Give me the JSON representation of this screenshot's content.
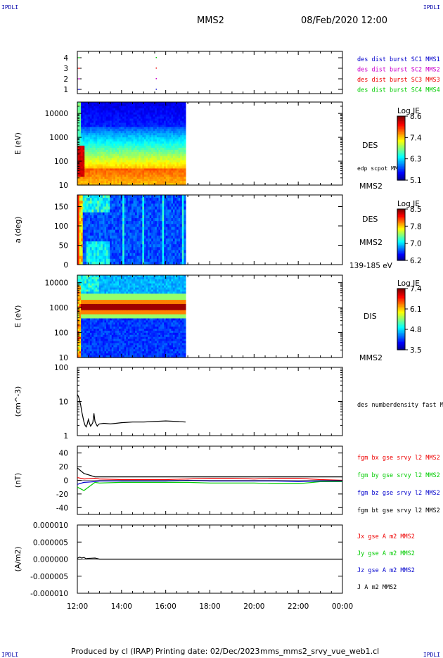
{
  "corners": {
    "top_left": "IPDLI",
    "top_right": "IPDLI",
    "bottom_left": "IPDLI",
    "bottom_right": "IPDLI"
  },
  "header": {
    "spacecraft": "MMS2",
    "date_time": "08/Feb/2020 12:00"
  },
  "footer": {
    "produced_by": "Produced by cl (IRAP)",
    "printing_date": "Printing date: 02/Dec/2023",
    "file": "mms_mms2_srvy_vue_web1.cl"
  },
  "colors": {
    "axis": "#000000",
    "red": "#ee0000",
    "green": "#00cc00",
    "blue": "#0000cc",
    "magenta": "#cc00cc",
    "black": "#000000"
  },
  "chart_data": [
    {
      "id": "burst",
      "type": "scatter",
      "yticks": [
        "1",
        "2",
        "3",
        "4"
      ],
      "ylim": [
        0.6,
        4.6
      ],
      "segments": [
        {
          "y": 1,
          "x": [
            12.03,
            12.12
          ],
          "color_key": "blue"
        },
        {
          "y": 2,
          "x": [
            12.03,
            12.12
          ],
          "color_key": "magenta"
        },
        {
          "y": 3,
          "x": [
            12.03,
            12.12
          ],
          "color_key": "red"
        },
        {
          "y": 4,
          "x": [
            12.03,
            12.12
          ],
          "color_key": "green"
        }
      ],
      "dots": [
        {
          "y": 1,
          "x": 15.55
        },
        {
          "y": 2,
          "x": 15.55
        },
        {
          "y": 3,
          "x": 15.55
        },
        {
          "y": 4,
          "x": 15.55
        }
      ],
      "legend": [
        {
          "text": "des dist burst SC1 MMS1",
          "color_key": "blue"
        },
        {
          "text": "des dist burst SC2 MMS2",
          "color_key": "magenta"
        },
        {
          "text": "des dist burst SC3 MMS3",
          "color_key": "red"
        },
        {
          "text": "des dist burst SC4 MMS4",
          "color_key": "green"
        }
      ]
    },
    {
      "id": "des_energy",
      "type": "heatmap",
      "ylabel": "E (eV)",
      "yscale": "log",
      "ylim": [
        10,
        30000
      ],
      "yticks": [
        "10",
        "100",
        "1000",
        "10000"
      ],
      "data_x_range": [
        12.0,
        16.9
      ],
      "instrument": "DES",
      "right_note": "edp scpot MMS2",
      "sc_label": "MMS2",
      "colorbar": {
        "title": "Log JE",
        "range": [
          5.1,
          8.6
        ],
        "ticks": [
          "8.6",
          "7.4",
          "6.3",
          "5.1"
        ]
      }
    },
    {
      "id": "des_pitch",
      "type": "heatmap",
      "ylabel": "a (deg)",
      "ylim": [
        0,
        180
      ],
      "yticks": [
        "0",
        "50",
        "100",
        "150"
      ],
      "data_x_range": [
        12.0,
        16.9
      ],
      "instrument": "DES",
      "sc_label": "MMS2",
      "energy_note": "139-185 eV",
      "colorbar": {
        "title": "Log JE",
        "range": [
          6.2,
          8.5
        ],
        "ticks": [
          "8.5",
          "7.8",
          "7.0",
          "6.2"
        ]
      }
    },
    {
      "id": "dis_energy",
      "type": "heatmap",
      "ylabel": "E (eV)",
      "yscale": "log",
      "ylim": [
        10,
        20000
      ],
      "yticks": [
        "10",
        "100",
        "1000",
        "10000"
      ],
      "data_x_range": [
        12.0,
        16.9
      ],
      "instrument": "DIS",
      "sc_label": "MMS2",
      "colorbar": {
        "title": "Log JE",
        "range": [
          3.5,
          7.4
        ],
        "ticks": [
          "7.4",
          "6.1",
          "4.8",
          "3.5"
        ]
      }
    },
    {
      "id": "density",
      "type": "line",
      "ylabel": "(cm^-3)",
      "yscale": "log",
      "ylim": [
        1,
        100
      ],
      "yticks": [
        "1",
        "10",
        "100"
      ],
      "legend": [
        {
          "text": "des numberdensity fast M",
          "color_key": "black"
        }
      ],
      "series": [
        {
          "color_key": "black",
          "x": [
            12.0,
            12.05,
            12.1,
            12.15,
            12.2,
            12.25,
            12.3,
            12.35,
            12.4,
            12.45,
            12.5,
            12.55,
            12.6,
            12.65,
            12.7,
            12.75,
            12.8,
            12.85,
            12.9,
            12.95,
            13.0,
            13.2,
            13.5,
            14.0,
            14.5,
            15.0,
            15.5,
            16.0,
            16.5,
            16.9
          ],
          "y": [
            16,
            14,
            11,
            8,
            5,
            3.5,
            2.5,
            2,
            1.8,
            2.2,
            3,
            2.3,
            1.9,
            2.1,
            2.4,
            4.5,
            2.6,
            2.2,
            1.9,
            2.1,
            2.2,
            2.3,
            2.2,
            2.4,
            2.5,
            2.5,
            2.6,
            2.7,
            2.6,
            2.5
          ]
        }
      ]
    },
    {
      "id": "fgm",
      "type": "line",
      "ylabel": "(nT)",
      "ylim": [
        -50,
        50
      ],
      "yticks": [
        "-40",
        "-20",
        "0",
        "20",
        "40"
      ],
      "legend": [
        {
          "text": "fgm bx gse srvy l2 MMS2",
          "color_key": "red"
        },
        {
          "text": "fgm by gse srvy l2 MMS2",
          "color_key": "green"
        },
        {
          "text": "fgm bz gse srvy l2 MMS2",
          "color_key": "blue"
        },
        {
          "text": "fgm bt gse srvy l2 MMS2",
          "color_key": "black"
        }
      ],
      "series": [
        {
          "name": "bx",
          "color_key": "red",
          "x": [
            12.0,
            12.3,
            12.8,
            13.0,
            14,
            15,
            16,
            17,
            18,
            19,
            20,
            21,
            22,
            23,
            24
          ],
          "y": [
            4,
            2,
            3,
            2,
            1,
            1,
            1,
            2,
            3,
            3,
            2,
            3,
            3,
            1,
            0
          ]
        },
        {
          "name": "by",
          "color_key": "green",
          "x": [
            12.0,
            12.3,
            12.8,
            13.0,
            14,
            15,
            16,
            17,
            18,
            19,
            20,
            21,
            22,
            23,
            24
          ],
          "y": [
            -10,
            -15,
            -3,
            -4,
            -3,
            -3,
            -3,
            -3,
            -4,
            -4,
            -4,
            -5,
            -5,
            -2,
            -2
          ]
        },
        {
          "name": "bz",
          "color_key": "blue",
          "x": [
            12.0,
            12.3,
            12.8,
            13.0,
            14,
            15,
            16,
            17,
            18,
            19,
            20,
            21,
            22,
            23,
            24
          ],
          "y": [
            -6,
            -3,
            -2,
            -1,
            -1,
            -1,
            -1,
            0,
            -1,
            -1,
            -1,
            -1,
            -2,
            -1,
            -1
          ]
        },
        {
          "name": "bt",
          "color_key": "black",
          "x": [
            12.0,
            12.3,
            12.8,
            13.0,
            14,
            15,
            16,
            17,
            18,
            19,
            20,
            21,
            22,
            23,
            24
          ],
          "y": [
            18,
            10,
            5,
            5,
            5,
            5,
            5,
            5,
            5,
            5,
            5,
            5,
            5,
            5,
            5
          ]
        }
      ]
    },
    {
      "id": "current",
      "type": "line",
      "ylabel": "(A/m2)",
      "ylim": [
        -1e-05,
        1e-05
      ],
      "yticks": [
        "-0.000010",
        "-0.000005",
        "0.000000",
        "0.000005",
        "0.000010"
      ],
      "xticks": [
        "12:00",
        "14:00",
        "16:00",
        "18:00",
        "20:00",
        "22:00",
        "00:00"
      ],
      "xlim": [
        12,
        24
      ],
      "legend": [
        {
          "text": "Jx gse A m2 MMS2",
          "color_key": "red"
        },
        {
          "text": "Jy gse A m2 MMS2",
          "color_key": "green"
        },
        {
          "text": "Jz gse A m2 MMS2",
          "color_key": "blue"
        },
        {
          "text": "J A m2 MMS2",
          "color_key": "black"
        }
      ],
      "series": [
        {
          "name": "J",
          "color_key": "black",
          "x": [
            12.0,
            12.1,
            12.2,
            12.3,
            12.4,
            12.5,
            12.8,
            13.0,
            14,
            16,
            18,
            20,
            22,
            24
          ],
          "y": [
            2e-07,
            6e-07,
            3e-07,
            5e-07,
            1e-07,
            2e-07,
            3e-07,
            0.0,
            0.0,
            0.0,
            0.0,
            0.0,
            0.0,
            0.0
          ]
        }
      ]
    }
  ]
}
